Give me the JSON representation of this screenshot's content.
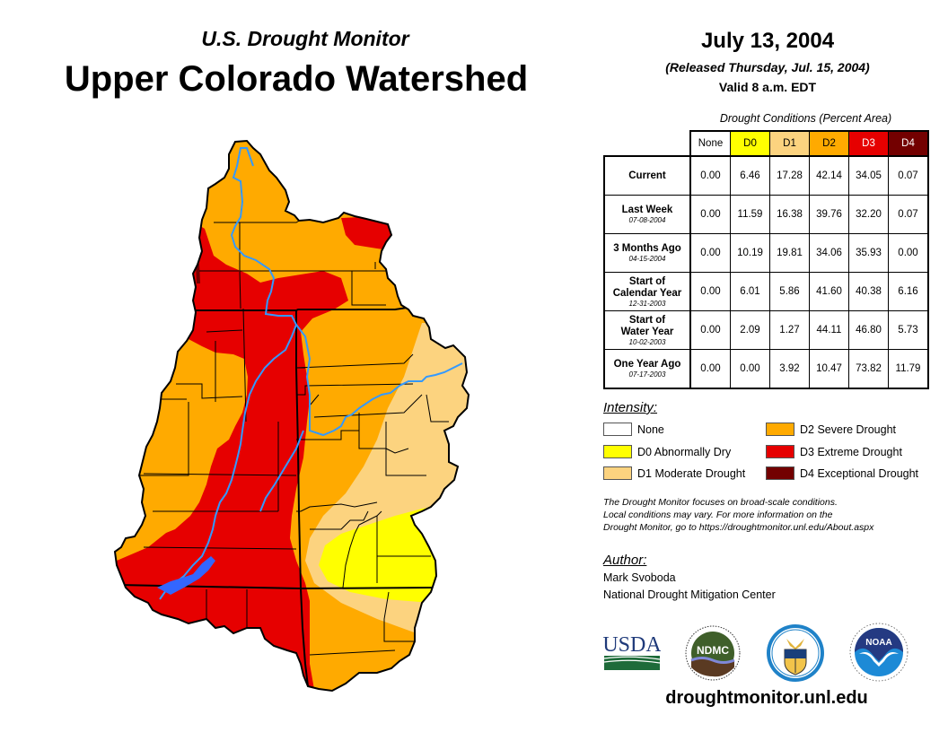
{
  "header": {
    "subtitle": "U.S. Drought Monitor",
    "title": "Upper Colorado Watershed",
    "date": "July 13, 2004",
    "released": "(Released Thursday, Jul. 15, 2004)",
    "valid": "Valid 8 a.m. EDT"
  },
  "table": {
    "caption": "Drought Conditions (Percent Area)",
    "columns": [
      "None",
      "D0",
      "D1",
      "D2",
      "D3",
      "D4"
    ],
    "rows": [
      {
        "label": "Current",
        "date": "",
        "values": [
          "0.00",
          "6.46",
          "17.28",
          "42.14",
          "34.05",
          "0.07"
        ]
      },
      {
        "label": "Last Week",
        "date": "07-08-2004",
        "values": [
          "0.00",
          "11.59",
          "16.38",
          "39.76",
          "32.20",
          "0.07"
        ]
      },
      {
        "label": "3 Months Ago",
        "date": "04-15-2004",
        "values": [
          "0.00",
          "10.19",
          "19.81",
          "34.06",
          "35.93",
          "0.00"
        ]
      },
      {
        "label_line1": "Start of",
        "label_line2": "Calendar Year",
        "date": "12-31-2003",
        "values": [
          "0.00",
          "6.01",
          "5.86",
          "41.60",
          "40.38",
          "6.16"
        ]
      },
      {
        "label_line1": "Start of",
        "label_line2": "Water Year",
        "date": "10-02-2003",
        "values": [
          "0.00",
          "2.09",
          "1.27",
          "44.11",
          "46.80",
          "5.73"
        ]
      },
      {
        "label": "One Year Ago",
        "date": "07-17-2003",
        "values": [
          "0.00",
          "0.00",
          "3.92",
          "10.47",
          "73.82",
          "11.79"
        ]
      }
    ]
  },
  "legend": {
    "title": "Intensity:",
    "items": [
      {
        "label": "None",
        "color": "#ffffff"
      },
      {
        "label": "D0 Abnormally Dry",
        "color": "#ffff00"
      },
      {
        "label": "D1 Moderate Drought",
        "color": "#fcd37f"
      },
      {
        "label": "D2 Severe Drought",
        "color": "#ffaa00"
      },
      {
        "label": "D3 Extreme Drought",
        "color": "#e60000"
      },
      {
        "label": "D4 Exceptional Drought",
        "color": "#730000"
      }
    ]
  },
  "disclaimer": {
    "line1": "The Drought Monitor focuses on broad-scale conditions.",
    "line2": "Local conditions may vary. For more information on the",
    "line3": "Drought Monitor, go to https://droughtmonitor.unl.edu/About.aspx"
  },
  "author": {
    "title": "Author:",
    "name": "Mark Svoboda",
    "org": "National Drought Mitigation Center"
  },
  "logos": {
    "usda": "USDA",
    "ndmc": "NDMC",
    "noaa": "NOAA",
    "commerce": "Department of Commerce"
  },
  "website": "droughtmonitor.unl.edu",
  "colors": {
    "none": "#ffffff",
    "d0": "#ffff00",
    "d1": "#fcd37f",
    "d2": "#ffaa00",
    "d3": "#e60000",
    "d4": "#730000",
    "river": "#3399ff"
  }
}
